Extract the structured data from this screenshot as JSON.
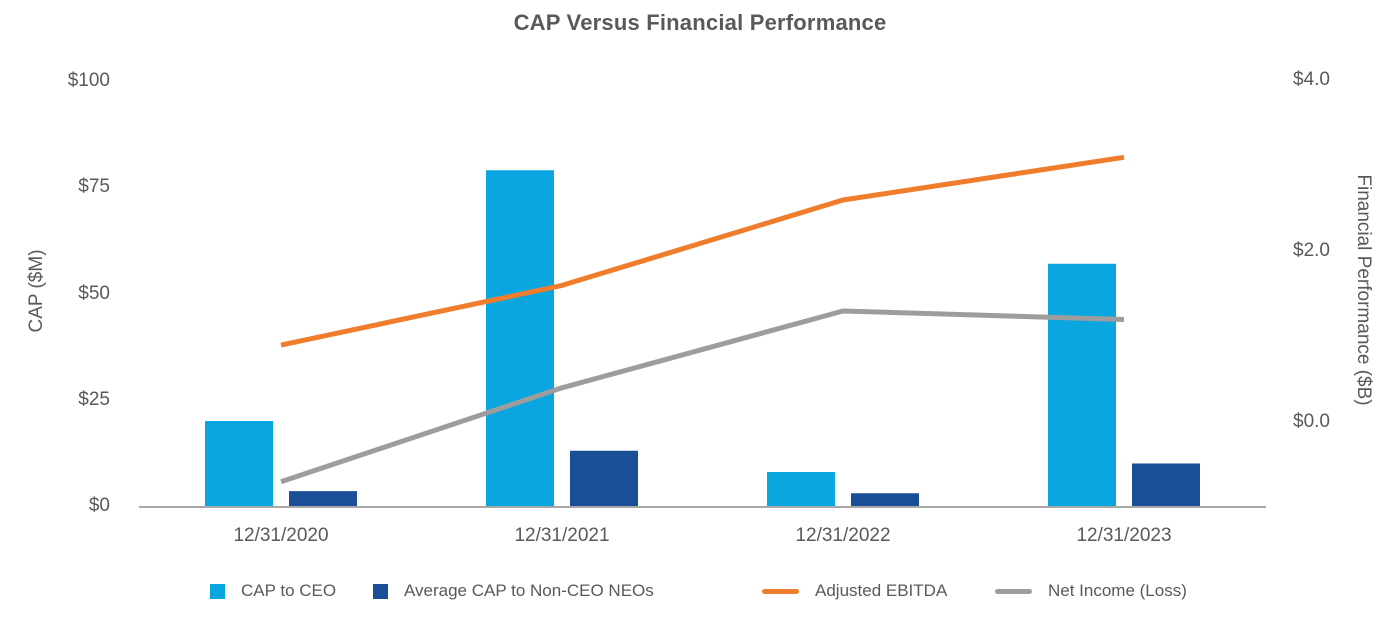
{
  "title": "CAP Versus Financial Performance",
  "chart_data": {
    "type": "combo-bar-line",
    "categories": [
      "12/31/2020",
      "12/31/2021",
      "12/31/2022",
      "12/31/2023"
    ],
    "bar_series": [
      {
        "name": "CAP to CEO",
        "color": "#09A6E0",
        "axis": "left",
        "values": [
          20,
          79,
          8,
          57
        ]
      },
      {
        "name": "Average CAP to Non-CEO NEOs",
        "color": "#1A4F97",
        "axis": "left",
        "values": [
          3.5,
          13,
          3,
          10
        ]
      }
    ],
    "line_series": [
      {
        "name": "Adjusted EBITDA",
        "color": "#EF7D2C",
        "axis": "right",
        "values": [
          0.9,
          1.6,
          2.6,
          3.1
        ]
      },
      {
        "name": "Net Income (Loss)",
        "color": "#9D9D9D",
        "axis": "right",
        "values": [
          -0.7,
          0.4,
          1.3,
          1.2
        ]
      }
    ],
    "left_axis": {
      "title": "CAP ($M)",
      "tick_labels": [
        "$100",
        "$75",
        "$50",
        "$25",
        "$0"
      ],
      "tick_values": [
        100,
        75,
        50,
        25,
        0
      ],
      "range": [
        0,
        100
      ]
    },
    "right_axis": {
      "title": "Financial Performance ($B)",
      "tick_labels": [
        "$4.0",
        "$2.0",
        "$0.0"
      ],
      "tick_values": [
        4,
        2,
        0
      ],
      "range": [
        -1,
        4
      ]
    },
    "grid": false,
    "legend_position": "bottom"
  },
  "colors": {
    "text": "#595959",
    "axis_line": "#A8A8A8"
  }
}
